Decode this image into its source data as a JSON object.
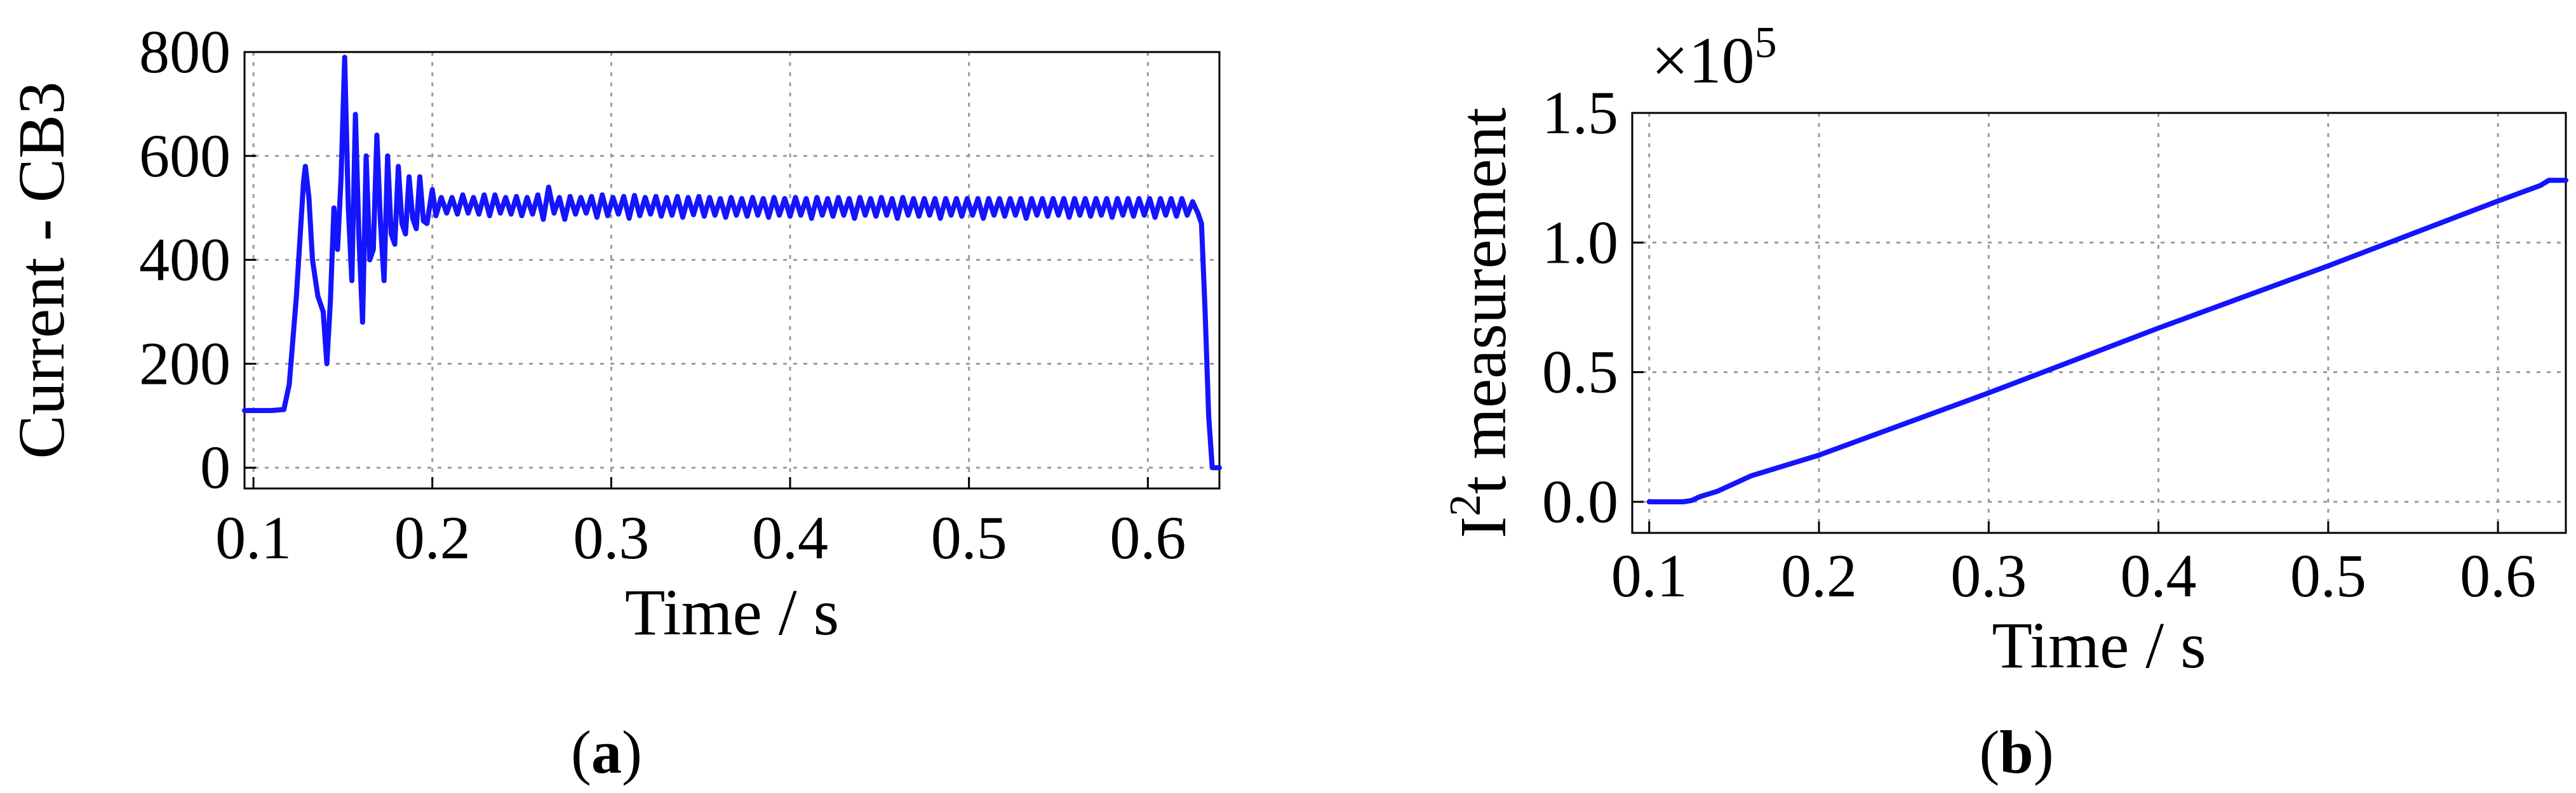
{
  "colors": {
    "series": "#1414ff"
  },
  "chart_data": [
    {
      "type": "line",
      "panel_label": "a",
      "xlabel": "Time / s",
      "ylabel": "Current - CB3",
      "xlim": [
        0.095,
        0.64
      ],
      "ylim": [
        -40,
        800
      ],
      "xticks": [
        0.1,
        0.2,
        0.3,
        0.4,
        0.5,
        0.6
      ],
      "xtick_labels": [
        "0.1",
        "0.2",
        "0.3",
        "0.4",
        "0.5",
        "0.6"
      ],
      "yticks": [
        0,
        200,
        400,
        600,
        800
      ],
      "ytick_labels": [
        "0",
        "200",
        "400",
        "600",
        "800"
      ],
      "grid": true,
      "series": [
        {
          "points": [
            [
              0.095,
              110
            ],
            [
              0.11,
              110
            ],
            [
              0.117,
              112
            ],
            [
              0.12,
              160
            ],
            [
              0.124,
              330
            ],
            [
              0.128,
              550
            ],
            [
              0.129,
              580
            ],
            [
              0.131,
              520
            ],
            [
              0.133,
              400
            ],
            [
              0.136,
              330
            ],
            [
              0.139,
              300
            ],
            [
              0.141,
              200
            ],
            [
              0.143,
              320
            ],
            [
              0.145,
              500
            ],
            [
              0.147,
              420
            ],
            [
              0.149,
              560
            ],
            [
              0.151,
              790
            ],
            [
              0.153,
              500
            ],
            [
              0.155,
              360
            ],
            [
              0.157,
              680
            ],
            [
              0.159,
              440
            ],
            [
              0.161,
              280
            ],
            [
              0.163,
              600
            ],
            [
              0.165,
              400
            ],
            [
              0.167,
              420
            ],
            [
              0.169,
              640
            ],
            [
              0.171,
              470
            ],
            [
              0.173,
              360
            ],
            [
              0.175,
              600
            ],
            [
              0.177,
              450
            ],
            [
              0.179,
              430
            ],
            [
              0.181,
              580
            ],
            [
              0.183,
              470
            ],
            [
              0.185,
              450
            ],
            [
              0.187,
              560
            ],
            [
              0.189,
              480
            ],
            [
              0.191,
              460
            ],
            [
              0.193,
              560
            ],
            [
              0.195,
              475
            ],
            [
              0.197,
              470
            ],
            [
              0.2,
              535
            ],
            [
              0.202,
              485
            ],
            [
              0.205,
              520
            ],
            [
              0.208,
              490
            ],
            [
              0.211,
              520
            ],
            [
              0.214,
              488
            ],
            [
              0.217,
              525
            ],
            [
              0.22,
              490
            ],
            [
              0.223,
              520
            ],
            [
              0.226,
              488
            ],
            [
              0.229,
              525
            ],
            [
              0.232,
              485
            ],
            [
              0.235,
              525
            ],
            [
              0.238,
              490
            ],
            [
              0.241,
              520
            ],
            [
              0.244,
              488
            ],
            [
              0.247,
              522
            ],
            [
              0.25,
              485
            ],
            [
              0.253,
              520
            ],
            [
              0.256,
              488
            ],
            [
              0.259,
              525
            ],
            [
              0.262,
              478
            ],
            [
              0.265,
              540
            ],
            [
              0.268,
              490
            ],
            [
              0.271,
              520
            ],
            [
              0.274,
              478
            ],
            [
              0.277,
              522
            ],
            [
              0.28,
              488
            ],
            [
              0.283,
              520
            ],
            [
              0.286,
              490
            ],
            [
              0.289,
              522
            ],
            [
              0.292,
              482
            ],
            [
              0.295,
              525
            ],
            [
              0.298,
              485
            ],
            [
              0.301,
              520
            ],
            [
              0.304,
              488
            ],
            [
              0.307,
              522
            ],
            [
              0.31,
              480
            ],
            [
              0.313,
              524
            ],
            [
              0.316,
              485
            ],
            [
              0.319,
              520
            ],
            [
              0.322,
              488
            ],
            [
              0.325,
              522
            ],
            [
              0.328,
              484
            ],
            [
              0.331,
              520
            ],
            [
              0.334,
              486
            ],
            [
              0.337,
              522
            ],
            [
              0.34,
              482
            ],
            [
              0.343,
              520
            ],
            [
              0.346,
              487
            ],
            [
              0.349,
              522
            ],
            [
              0.352,
              484
            ],
            [
              0.355,
              520
            ],
            [
              0.358,
              486
            ],
            [
              0.361,
              518
            ],
            [
              0.364,
              482
            ],
            [
              0.367,
              520
            ],
            [
              0.37,
              486
            ],
            [
              0.373,
              518
            ],
            [
              0.376,
              484
            ],
            [
              0.379,
              520
            ],
            [
              0.382,
              486
            ],
            [
              0.385,
              518
            ],
            [
              0.388,
              482
            ],
            [
              0.391,
              520
            ],
            [
              0.394,
              486
            ],
            [
              0.397,
              518
            ],
            [
              0.4,
              484
            ],
            [
              0.403,
              520
            ],
            [
              0.406,
              486
            ],
            [
              0.409,
              518
            ],
            [
              0.412,
              480
            ],
            [
              0.415,
              520
            ],
            [
              0.418,
              486
            ],
            [
              0.421,
              518
            ],
            [
              0.424,
              484
            ],
            [
              0.427,
              520
            ],
            [
              0.43,
              486
            ],
            [
              0.433,
              518
            ],
            [
              0.436,
              480
            ],
            [
              0.439,
              520
            ],
            [
              0.442,
              486
            ],
            [
              0.445,
              518
            ],
            [
              0.448,
              484
            ],
            [
              0.451,
              520
            ],
            [
              0.454,
              486
            ],
            [
              0.457,
              518
            ],
            [
              0.46,
              480
            ],
            [
              0.463,
              520
            ],
            [
              0.466,
              486
            ],
            [
              0.469,
              518
            ],
            [
              0.472,
              484
            ],
            [
              0.475,
              518
            ],
            [
              0.478,
              486
            ],
            [
              0.481,
              518
            ],
            [
              0.484,
              480
            ],
            [
              0.487,
              518
            ],
            [
              0.49,
              486
            ],
            [
              0.493,
              518
            ],
            [
              0.496,
              484
            ],
            [
              0.499,
              518
            ],
            [
              0.502,
              486
            ],
            [
              0.505,
              518
            ],
            [
              0.508,
              480
            ],
            [
              0.511,
              518
            ],
            [
              0.514,
              486
            ],
            [
              0.517,
              518
            ],
            [
              0.52,
              484
            ],
            [
              0.523,
              518
            ],
            [
              0.526,
              486
            ],
            [
              0.529,
              518
            ],
            [
              0.532,
              480
            ],
            [
              0.535,
              518
            ],
            [
              0.538,
              486
            ],
            [
              0.541,
              518
            ],
            [
              0.544,
              484
            ],
            [
              0.547,
              518
            ],
            [
              0.55,
              486
            ],
            [
              0.553,
              518
            ],
            [
              0.556,
              482
            ],
            [
              0.559,
              518
            ],
            [
              0.562,
              486
            ],
            [
              0.565,
              518
            ],
            [
              0.568,
              484
            ],
            [
              0.571,
              518
            ],
            [
              0.574,
              486
            ],
            [
              0.577,
              518
            ],
            [
              0.58,
              482
            ],
            [
              0.583,
              518
            ],
            [
              0.586,
              486
            ],
            [
              0.589,
              518
            ],
            [
              0.592,
              484
            ],
            [
              0.595,
              518
            ],
            [
              0.598,
              486
            ],
            [
              0.601,
              518
            ],
            [
              0.604,
              482
            ],
            [
              0.607,
              518
            ],
            [
              0.61,
              486
            ],
            [
              0.613,
              518
            ],
            [
              0.616,
              484
            ],
            [
              0.619,
              518
            ],
            [
              0.622,
              486
            ],
            [
              0.625,
              512
            ],
            [
              0.628,
              490
            ],
            [
              0.63,
              470
            ],
            [
              0.632,
              300
            ],
            [
              0.634,
              100
            ],
            [
              0.636,
              0
            ],
            [
              0.64,
              0
            ]
          ]
        }
      ]
    },
    {
      "type": "line",
      "panel_label": "b",
      "xlabel": "Time / s",
      "ylabel": "I2t measurement",
      "ylabel_main": "I",
      "ylabel_sup": "2",
      "ylabel_rest": "t measurement",
      "scale_prefix": "×10",
      "scale_exponent": "5",
      "xlim": [
        0.09,
        0.64
      ],
      "ylim": [
        -0.12,
        1.5
      ],
      "xticks": [
        0.1,
        0.2,
        0.3,
        0.4,
        0.5,
        0.6
      ],
      "xtick_labels": [
        "0.1",
        "0.2",
        "0.3",
        "0.4",
        "0.5",
        "0.6"
      ],
      "yticks": [
        0,
        0.5,
        1.0,
        1.5
      ],
      "ytick_labels": [
        "0.0",
        "0.5",
        "1.0",
        "1.5"
      ],
      "grid": true,
      "series": [
        {
          "points": [
            [
              0.1,
              0.0
            ],
            [
              0.12,
              0.0
            ],
            [
              0.125,
              0.005
            ],
            [
              0.13,
              0.02
            ],
            [
              0.14,
              0.04
            ],
            [
              0.15,
              0.07
            ],
            [
              0.16,
              0.1
            ],
            [
              0.2,
              0.18
            ],
            [
              0.3,
              0.42
            ],
            [
              0.4,
              0.67
            ],
            [
              0.5,
              0.91
            ],
            [
              0.6,
              1.16
            ],
            [
              0.625,
              1.22
            ],
            [
              0.63,
              1.24
            ],
            [
              0.64,
              1.24
            ]
          ]
        }
      ]
    }
  ],
  "captions": [
    {
      "open": "(",
      "label": "a",
      "close": ")"
    },
    {
      "open": "(",
      "label": "b",
      "close": ")"
    }
  ]
}
